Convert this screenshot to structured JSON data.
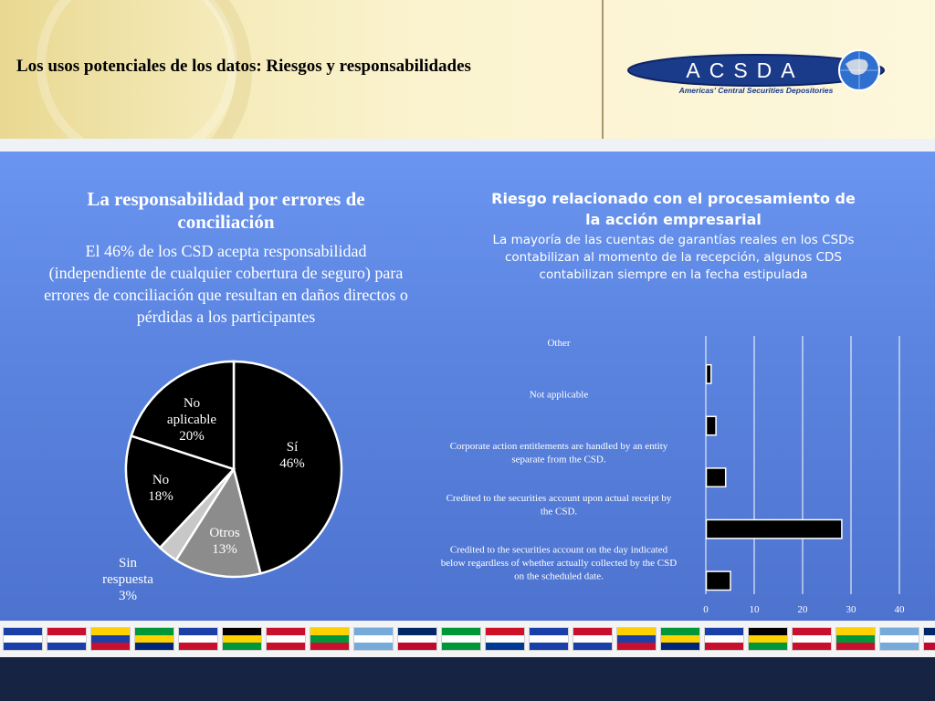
{
  "header": {
    "title": "Los usos potenciales de los datos: Riesgos y responsabilidades",
    "logo_text": "ACSDA",
    "logo_subtext": "Americas' Central Securities Depositories"
  },
  "left_panel": {
    "title": "La responsabilidad por errores de conciliación",
    "description": "El 46% de los CSD acepta responsabilidad (independiente de cualquier cobertura de seguro) para errores de conciliación que resultan en daños directos o pérdidas a los participantes"
  },
  "right_panel": {
    "title": "Riesgo relacionado con el procesamiento de la acción empresarial",
    "description": "La mayoría de las cuentas de garantías reales en los CSDs contabilizan al momento de la recepción, algunos CDS contabilizan siempre en la fecha estipulada"
  },
  "chart_data": [
    {
      "type": "pie",
      "title": "",
      "slices": [
        {
          "label": "Sí",
          "value": 46,
          "display": "46%",
          "color": "#000000"
        },
        {
          "label": "Otros",
          "value": 13,
          "display": "13%",
          "color": "#8c8c8c"
        },
        {
          "label": "Sin respuesta",
          "value": 3,
          "display": "3%",
          "color": "#c8c8c8"
        },
        {
          "label": "No",
          "value": 18,
          "display": "18%",
          "color": "#000000"
        },
        {
          "label": "No aplicable",
          "value": 20,
          "display": "20%",
          "color": "#000000"
        }
      ]
    },
    {
      "type": "bar",
      "orientation": "horizontal",
      "title": "",
      "xlabel": "",
      "ylabel": "",
      "xlim": [
        0,
        40
      ],
      "xticks": [
        0,
        10,
        20,
        30,
        40
      ],
      "grid": true,
      "categories": [
        "Other",
        "Not applicable",
        "Corporate action entitlements are handled by an entity separate from the CSD.",
        "Credited to the securities account upon actual receipt by the CSD.",
        "Credited to the securities account on the day indicated below regardless of whether actually collected by the CSD on the scheduled date."
      ],
      "values": [
        1,
        2,
        4,
        28,
        5
      ],
      "bar_color": "#000000"
    }
  ]
}
